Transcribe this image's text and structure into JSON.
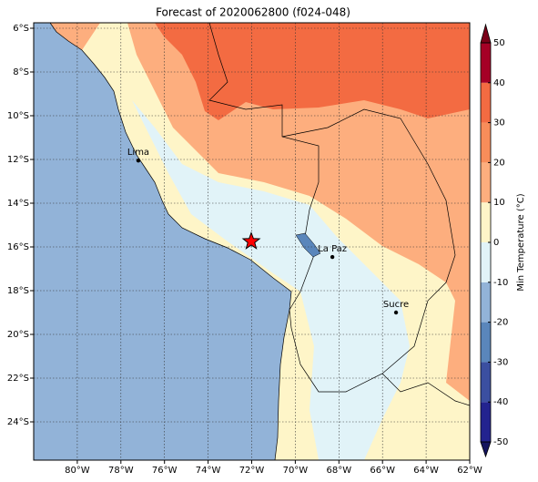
{
  "title": "Forecast of 2020062800 (f024-048)",
  "map": {
    "xlim": [
      -82,
      -62
    ],
    "ylim": [
      -25.75,
      -5.75
    ],
    "lon_ticks": [
      {
        "value": -80,
        "label": "80°W"
      },
      {
        "value": -78,
        "label": "78°W"
      },
      {
        "value": -76,
        "label": "76°W"
      },
      {
        "value": -74,
        "label": "74°W"
      },
      {
        "value": -72,
        "label": "72°W"
      },
      {
        "value": -70,
        "label": "70°W"
      },
      {
        "value": -68,
        "label": "68°W"
      },
      {
        "value": -66,
        "label": "66°W"
      },
      {
        "value": -64,
        "label": "64°W"
      },
      {
        "value": -62,
        "label": "62°W"
      }
    ],
    "lat_ticks": [
      {
        "value": -6,
        "label": "6°S"
      },
      {
        "value": -8,
        "label": "8°S"
      },
      {
        "value": -10,
        "label": "10°S"
      },
      {
        "value": -12,
        "label": "12°S"
      },
      {
        "value": -14,
        "label": "14°S"
      },
      {
        "value": -16,
        "label": "16°S"
      },
      {
        "value": -18,
        "label": "18°S"
      },
      {
        "value": -20,
        "label": "20°S"
      },
      {
        "value": -22,
        "label": "22°S"
      },
      {
        "value": -24,
        "label": "24°S"
      }
    ],
    "grid": true,
    "cities": [
      {
        "name": "Lima",
        "lon": -77.2,
        "lat": -12.05
      },
      {
        "name": "La Paz",
        "lon": -68.3,
        "lat": -16.46
      },
      {
        "name": "Sucre",
        "lon": -65.38,
        "lat": -19.0
      }
    ],
    "marker": {
      "lon": -72.02,
      "lat": -15.75,
      "color": "#ff0000"
    }
  },
  "colorbar": {
    "label": "Min Temperature (°C)",
    "lim": [
      -50,
      50
    ],
    "ticks": [
      -50,
      -40,
      -30,
      -20,
      -10,
      0,
      10,
      20,
      30,
      40,
      50
    ],
    "colors": [
      "#23238f",
      "#3b4fa0",
      "#5a86bb",
      "#92b3d8",
      "#e1f3f8",
      "#fef5c8",
      "#fdae7e",
      "#f88d5a",
      "#f36b42",
      "#a50026"
    ],
    "extend_colors": [
      "#14145e",
      "#7a0018"
    ]
  }
}
